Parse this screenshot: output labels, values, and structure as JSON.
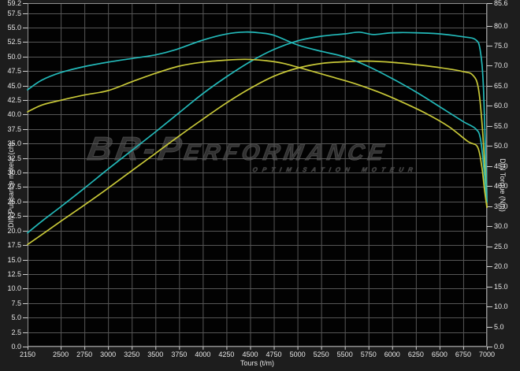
{
  "watermark": {
    "line1": "BR-Performance",
    "line2": "optimisation moteur"
  },
  "chart_data": {
    "type": "line",
    "title": "",
    "xlabel": "Tours (t/m)",
    "ylabel_left": "DIN Puissance moteur (ch)",
    "ylabel_right": "DIN Torque (Nm)",
    "xlim": [
      2150,
      7000
    ],
    "ylim_left": [
      0,
      59.2
    ],
    "ylim_right": [
      0,
      85.6
    ],
    "grid": true,
    "legend_position": "none",
    "x_ticks": [
      2150,
      2500,
      2750,
      3000,
      3250,
      3500,
      3750,
      4000,
      4250,
      4500,
      4750,
      5000,
      5250,
      5500,
      5750,
      6000,
      6250,
      6500,
      6750,
      7000
    ],
    "y_ticks_left": [
      59.2,
      57.5,
      55.0,
      52.5,
      50.0,
      47.5,
      45.0,
      42.5,
      40.0,
      37.5,
      35.0,
      32.5,
      30.0,
      27.5,
      25.0,
      22.5,
      20.0,
      17.5,
      15.0,
      12.5,
      10.0,
      7.5,
      5.0,
      2.5,
      0.0
    ],
    "y_ticks_right": [
      85.6,
      80.0,
      75.0,
      70.0,
      65.0,
      60.0,
      55.0,
      50.0,
      45.0,
      40.0,
      35.0,
      30.0,
      25.0,
      20.0,
      15.0,
      10.0,
      5.0,
      0.0
    ],
    "colors": {
      "accent_cyan": "#23b9b9",
      "accent_yellow": "#c8c838",
      "grid": "#565656",
      "frame": "#8f8f8f",
      "tick": "#cfcfcf",
      "plot_bg": "#020202",
      "outer_bg": "#1d1d1d",
      "text": "#e8e8e8",
      "watermark": "#313131"
    },
    "series": [
      {
        "name": "power-modified",
        "axis": "left",
        "unit": "ch",
        "color_key": "accent_cyan",
        "points": [
          [
            2150,
            19.6
          ],
          [
            2300,
            21.6
          ],
          [
            2500,
            24.1
          ],
          [
            2750,
            27.3
          ],
          [
            3000,
            30.6
          ],
          [
            3250,
            33.8
          ],
          [
            3500,
            37.0
          ],
          [
            3750,
            40.3
          ],
          [
            4000,
            43.6
          ],
          [
            4250,
            46.5
          ],
          [
            4500,
            49.1
          ],
          [
            4750,
            51.2
          ],
          [
            5000,
            52.7
          ],
          [
            5250,
            53.5
          ],
          [
            5500,
            53.9
          ],
          [
            5650,
            54.2
          ],
          [
            5800,
            53.8
          ],
          [
            6000,
            54.1
          ],
          [
            6250,
            54.1
          ],
          [
            6500,
            53.9
          ],
          [
            6750,
            53.4
          ],
          [
            6880,
            52.9
          ],
          [
            6930,
            51.0
          ],
          [
            6965,
            44.0
          ],
          [
            7000,
            24.9
          ]
        ]
      },
      {
        "name": "power-original",
        "axis": "left",
        "unit": "ch",
        "color_key": "accent_yellow",
        "points": [
          [
            2150,
            17.6
          ],
          [
            2300,
            19.3
          ],
          [
            2500,
            21.6
          ],
          [
            2750,
            24.4
          ],
          [
            3000,
            27.3
          ],
          [
            3250,
            30.3
          ],
          [
            3500,
            33.3
          ],
          [
            3750,
            36.3
          ],
          [
            4000,
            39.2
          ],
          [
            4250,
            42.0
          ],
          [
            4500,
            44.5
          ],
          [
            4750,
            46.6
          ],
          [
            5000,
            48.0
          ],
          [
            5250,
            48.8
          ],
          [
            5500,
            49.1
          ],
          [
            5750,
            49.2
          ],
          [
            6000,
            49.0
          ],
          [
            6250,
            48.6
          ],
          [
            6500,
            48.1
          ],
          [
            6750,
            47.4
          ],
          [
            6850,
            46.8
          ],
          [
            6910,
            44.5
          ],
          [
            6955,
            37.0
          ],
          [
            7000,
            24.0
          ]
        ]
      },
      {
        "name": "torque-modified",
        "axis": "right",
        "unit": "Nm",
        "color_key": "accent_cyan",
        "points": [
          [
            2150,
            64.0
          ],
          [
            2300,
            66.4
          ],
          [
            2500,
            68.3
          ],
          [
            2750,
            69.8
          ],
          [
            3000,
            70.9
          ],
          [
            3250,
            71.8
          ],
          [
            3500,
            72.7
          ],
          [
            3700,
            73.9
          ],
          [
            4000,
            76.4
          ],
          [
            4250,
            77.9
          ],
          [
            4450,
            78.4
          ],
          [
            4600,
            78.2
          ],
          [
            4750,
            77.6
          ],
          [
            5000,
            75.2
          ],
          [
            5250,
            73.6
          ],
          [
            5500,
            72.2
          ],
          [
            5750,
            69.8
          ],
          [
            6000,
            66.8
          ],
          [
            6250,
            63.5
          ],
          [
            6500,
            59.8
          ],
          [
            6750,
            56.1
          ],
          [
            6880,
            54.3
          ],
          [
            6930,
            52.0
          ],
          [
            6965,
            45.0
          ],
          [
            7000,
            36.0
          ]
        ]
      },
      {
        "name": "torque-original",
        "axis": "right",
        "unit": "Nm",
        "color_key": "accent_yellow",
        "points": [
          [
            2150,
            58.5
          ],
          [
            2300,
            60.2
          ],
          [
            2500,
            61.4
          ],
          [
            2750,
            62.7
          ],
          [
            3000,
            63.8
          ],
          [
            3250,
            66.0
          ],
          [
            3500,
            68.1
          ],
          [
            3750,
            69.9
          ],
          [
            4000,
            70.9
          ],
          [
            4250,
            71.4
          ],
          [
            4450,
            71.6
          ],
          [
            4650,
            71.3
          ],
          [
            4850,
            70.6
          ],
          [
            5100,
            69.0
          ],
          [
            5350,
            67.3
          ],
          [
            5600,
            65.6
          ],
          [
            5850,
            63.5
          ],
          [
            6100,
            61.0
          ],
          [
            6350,
            58.2
          ],
          [
            6600,
            54.8
          ],
          [
            6800,
            51.1
          ],
          [
            6900,
            49.8
          ],
          [
            6945,
            45.0
          ],
          [
            6975,
            39.0
          ],
          [
            7000,
            34.7
          ]
        ]
      }
    ]
  }
}
